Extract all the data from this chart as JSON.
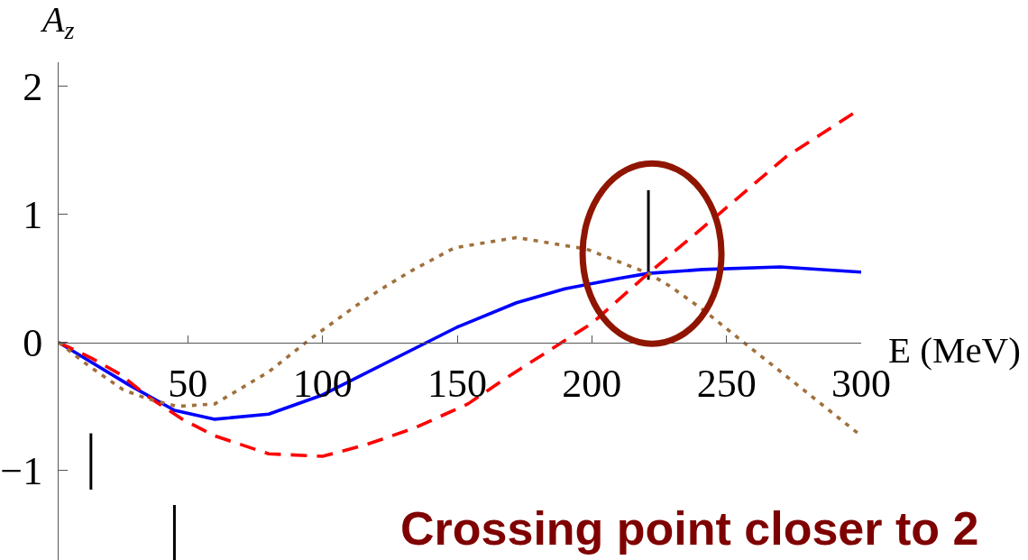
{
  "chart_data": {
    "type": "line",
    "xlabel": "E (MeV)",
    "ylabel": "A$_{z}$",
    "xlim": [
      2,
      300
    ],
    "xticks": [
      50,
      100,
      150,
      200,
      250,
      300
    ],
    "ylim": [
      -1.7,
      2.19
    ],
    "yticks": [
      {
        "value": -1,
        "label": "−1"
      },
      0,
      1,
      2
    ],
    "series": [
      {
        "color": "#0000ff",
        "line_style": "solid",
        "x": [
          2,
          28,
          45,
          60,
          80,
          100,
          150,
          172,
          190,
          210,
          221,
          241,
          270,
          300
        ],
        "values": [
          0,
          -0.33,
          -0.53,
          -0.6,
          -0.56,
          -0.41,
          0.12,
          0.31,
          0.42,
          0.5,
          0.54,
          0.57,
          0.59,
          0.55
        ]
      },
      {
        "color": "#ff0000",
        "line_style": "dashed",
        "x": [
          2,
          14,
          25,
          35,
          48,
          60,
          80,
          100,
          116,
          134,
          154,
          168,
          200,
          221,
          247,
          272,
          300
        ],
        "values": [
          0,
          -0.12,
          -0.25,
          -0.42,
          -0.6,
          -0.73,
          -0.87,
          -0.89,
          -0.8,
          -0.67,
          -0.48,
          -0.28,
          0.15,
          0.54,
          1.0,
          1.45,
          1.83
        ]
      },
      {
        "color": "#a0703c",
        "line_style": "dotted",
        "x": [
          2,
          13,
          26,
          35,
          46,
          60,
          80,
          95,
          112,
          122,
          133,
          149,
          172,
          198,
          221,
          229,
          241,
          257,
          275,
          300
        ],
        "values": [
          0,
          -0.18,
          -0.37,
          -0.44,
          -0.5,
          -0.48,
          -0.23,
          0.02,
          0.28,
          0.42,
          0.56,
          0.74,
          0.82,
          0.73,
          0.54,
          0.44,
          0.26,
          -0.01,
          -0.31,
          -0.73
        ]
      },
      {
        "type": "bar",
        "color": "#000000",
        "x": [
          14,
          45,
          221
        ],
        "base": [
          -1.15,
          -1.7,
          0.49
        ],
        "values": [
          0.44,
          0.43,
          0.7
        ]
      }
    ],
    "annotations": [
      "Crossing point closer to 2"
    ]
  }
}
